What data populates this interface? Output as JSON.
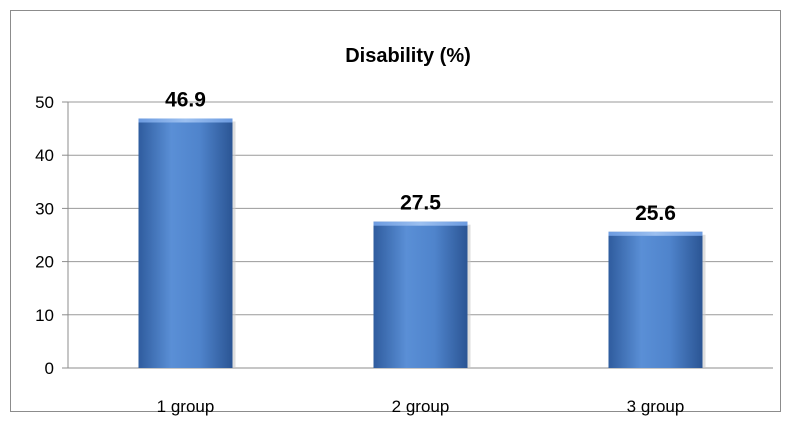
{
  "chart_data": {
    "type": "bar",
    "title": "Disability (%)",
    "categories": [
      "1 group",
      "2 group",
      "3 group"
    ],
    "values": [
      46.9,
      27.5,
      25.6
    ],
    "data_labels": [
      "46.9",
      "27.5",
      "25.6"
    ],
    "ylim": [
      0,
      50
    ],
    "yticks": [
      "0",
      "10",
      "20",
      "30",
      "40",
      "50"
    ],
    "grid": true,
    "legend": "none",
    "bar_color": "#4a7ec6"
  }
}
